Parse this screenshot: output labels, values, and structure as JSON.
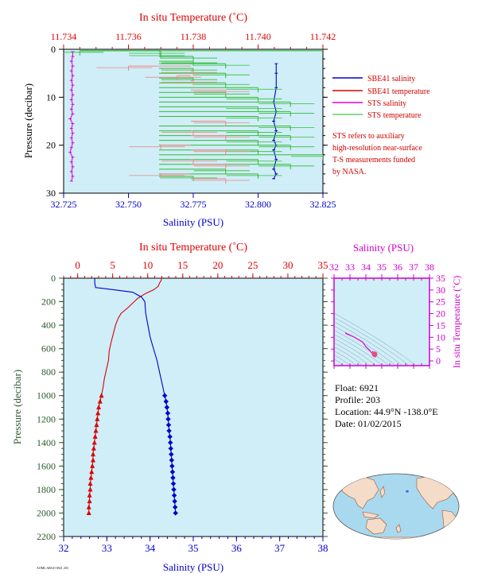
{
  "colors": {
    "plot_bg": "#cfeef8",
    "salinity": "#0000cc",
    "temperature": "#dd0000",
    "sts_salinity": "#dd00dd",
    "sts_temperature": "#33bb33",
    "sts_temperature_shallow": "#f08888",
    "pressure_axis": "#2c5a2c",
    "ts_axis": "#cc00cc"
  },
  "info": {
    "float": "Float:  6921",
    "profile": "Profile:  203",
    "location": "Location:  44.9°N  -138.0°E",
    "date": "Date:  01/02/2015"
  },
  "footer_text": "AOML ARGO 6921 203",
  "chart_data": [
    {
      "id": "top",
      "type": "line",
      "xlabel": "Salinity (PSU)",
      "ylabel": "Pressure (decibar)",
      "top_axis_label": "In situ Temperature (˚C)",
      "xlim": [
        32.725,
        32.825
      ],
      "xticks": [
        "32.725",
        "32.750",
        "32.775",
        "32.800",
        "32.825"
      ],
      "top_xlim": [
        11.734,
        11.742
      ],
      "top_xticks": [
        "11.734",
        "11.736",
        "11.738",
        "11.740",
        "11.742"
      ],
      "ylim": [
        0,
        30
      ],
      "yticks": [
        "0",
        "10",
        "20",
        "30"
      ],
      "legend_position": "right",
      "legend": [
        {
          "name": "SBE41 salinity",
          "color_key": "salinity"
        },
        {
          "name": "SBE41 temperature",
          "color_key": "temperature"
        },
        {
          "name": "STS salinity",
          "color_key": "sts_salinity"
        },
        {
          "name": "STS temperature",
          "color_key": "sts_temperature"
        }
      ],
      "note": [
        "STS refers to auxiliary",
        "high-resolution near-surface",
        "T-S measurements funded",
        "by NASA."
      ],
      "series": [
        {
          "name": "STS salinity",
          "axis": "salinity",
          "color_key": "sts_salinity",
          "points": [
            [
              32.7285,
              0.5
            ],
            [
              32.7285,
              1.5
            ],
            [
              32.728,
              2.5
            ],
            [
              32.7285,
              3.5
            ],
            [
              32.728,
              4.5
            ],
            [
              32.7285,
              5.5
            ],
            [
              32.728,
              6.5
            ],
            [
              32.7285,
              7.5
            ],
            [
              32.728,
              8.5
            ],
            [
              32.7285,
              9.5
            ],
            [
              32.728,
              10.5
            ],
            [
              32.7285,
              11.5
            ],
            [
              32.728,
              12.5
            ],
            [
              32.7285,
              13.5
            ],
            [
              32.7275,
              14.5
            ],
            [
              32.7285,
              15.5
            ],
            [
              32.728,
              16.5
            ],
            [
              32.7285,
              17.5
            ],
            [
              32.728,
              18.5
            ],
            [
              32.7285,
              19.5
            ],
            [
              32.728,
              20.5
            ],
            [
              32.7275,
              21.5
            ],
            [
              32.7285,
              22.5
            ],
            [
              32.728,
              23.5
            ],
            [
              32.7285,
              24.5
            ],
            [
              32.728,
              25.5
            ],
            [
              32.7285,
              26.5
            ],
            [
              32.728,
              27.5
            ]
          ]
        },
        {
          "name": "SBE41 salinity",
          "axis": "salinity",
          "color_key": "salinity",
          "points": [
            [
              32.807,
              3
            ],
            [
              32.807,
              5
            ],
            [
              32.807,
              8
            ],
            [
              32.806,
              11
            ],
            [
              32.807,
              13
            ],
            [
              32.806,
              15
            ],
            [
              32.807,
              17
            ],
            [
              32.806,
              19
            ],
            [
              32.807,
              20
            ],
            [
              32.806,
              21
            ],
            [
              32.807,
              23
            ],
            [
              32.806,
              25
            ],
            [
              32.807,
              26
            ],
            [
              32.806,
              27
            ]
          ]
        },
        {
          "name": "STS temperature",
          "axis": "temperature",
          "color_key": "sts_temperature",
          "points": [
            [
              11.7345,
              0.3
            ],
            [
              11.737,
              0.5
            ],
            [
              11.737,
              1.0
            ],
            [
              11.738,
              1.5
            ],
            [
              11.738,
              2.5
            ],
            [
              11.739,
              3.0
            ],
            [
              11.738,
              4.0
            ],
            [
              11.739,
              5.0
            ],
            [
              11.738,
              6.0
            ],
            [
              11.739,
              7.0
            ],
            [
              11.74,
              8.0
            ],
            [
              11.739,
              9.0
            ],
            [
              11.74,
              10.0
            ],
            [
              11.741,
              11.0
            ],
            [
              11.74,
              12.0
            ],
            [
              11.741,
              13.0
            ],
            [
              11.74,
              14.0
            ],
            [
              11.741,
              16.0
            ],
            [
              11.74,
              17.0
            ],
            [
              11.741,
              18.0
            ],
            [
              11.74,
              19.0
            ],
            [
              11.741,
              20.0
            ],
            [
              11.74,
              21.0
            ],
            [
              11.742,
              22.0
            ],
            [
              11.74,
              23.0
            ],
            [
              11.741,
              24.0
            ],
            [
              11.739,
              25.0
            ],
            [
              11.74,
              26.0
            ],
            [
              11.738,
              26.5
            ]
          ]
        },
        {
          "name": "SBE41 temperature",
          "axis": "temperature",
          "color_key": "sts_temperature_shallow",
          "points": [
            [
              11.736,
              3.5
            ],
            [
              11.738,
              4.5
            ],
            [
              11.7375,
              5.5
            ],
            [
              11.738,
              6.5
            ],
            [
              11.739,
              8.5
            ],
            [
              11.739,
              15.0
            ],
            [
              11.738,
              17.0
            ],
            [
              11.739,
              18.0
            ],
            [
              11.737,
              20.0
            ],
            [
              11.739,
              21.0
            ],
            [
              11.738,
              23.0
            ],
            [
              11.739,
              24.0
            ],
            [
              11.737,
              26.0
            ],
            [
              11.739,
              27.0
            ]
          ]
        }
      ]
    },
    {
      "id": "bottom",
      "type": "line",
      "xlabel": "Salinity (PSU)",
      "ylabel": "Pressure (decibar)",
      "top_axis_label": "In situ Temperature (˚C)",
      "xlim": [
        32,
        38
      ],
      "xticks": [
        "32",
        "33",
        "34",
        "35",
        "36",
        "37",
        "38"
      ],
      "top_xlim": [
        -2,
        35
      ],
      "top_xticks": [
        "0",
        "5",
        "10",
        "15",
        "20",
        "25",
        "30",
        "35"
      ],
      "ylim": [
        0,
        2200
      ],
      "yticks": [
        "0",
        "200",
        "400",
        "600",
        "800",
        "1000",
        "1200",
        "1400",
        "1600",
        "1800",
        "2000",
        "2200"
      ],
      "series": [
        {
          "name": "Temperature",
          "axis": "temperature",
          "color_key": "temperature",
          "points": [
            [
              12.0,
              0
            ],
            [
              11.9,
              20
            ],
            [
              11.7,
              40
            ],
            [
              11.5,
              70
            ],
            [
              10.8,
              100
            ],
            [
              9.7,
              130
            ],
            [
              8.6,
              170
            ],
            [
              7.9,
              210
            ],
            [
              7.2,
              250
            ],
            [
              6.2,
              300
            ],
            [
              5.8,
              340
            ],
            [
              5.4,
              400
            ],
            [
              5.1,
              470
            ],
            [
              4.8,
              540
            ],
            [
              4.5,
              620
            ],
            [
              4.4,
              700
            ],
            [
              4.1,
              780
            ],
            [
              3.8,
              860
            ],
            [
              3.6,
              940
            ],
            [
              3.4,
              1000
            ],
            [
              3.2,
              1050
            ],
            [
              3.0,
              1100
            ],
            [
              2.9,
              1150
            ],
            [
              2.8,
              1200
            ],
            [
              2.7,
              1250
            ],
            [
              2.6,
              1300
            ],
            [
              2.5,
              1350
            ],
            [
              2.4,
              1400
            ],
            [
              2.3,
              1450
            ],
            [
              2.2,
              1500
            ],
            [
              2.2,
              1550
            ],
            [
              2.1,
              1600
            ],
            [
              2.0,
              1650
            ],
            [
              1.9,
              1700
            ],
            [
              1.8,
              1750
            ],
            [
              1.8,
              1800
            ],
            [
              1.7,
              1850
            ],
            [
              1.7,
              1900
            ],
            [
              1.6,
              1950
            ],
            [
              1.6,
              2000
            ]
          ],
          "markers_from": 1000
        },
        {
          "name": "Salinity",
          "axis": "salinity",
          "color_key": "salinity",
          "points": [
            [
              32.72,
              0
            ],
            [
              32.72,
              40
            ],
            [
              32.74,
              80
            ],
            [
              33.2,
              100
            ],
            [
              33.6,
              120
            ],
            [
              33.8,
              160
            ],
            [
              33.88,
              200
            ],
            [
              33.9,
              300
            ],
            [
              33.95,
              400
            ],
            [
              34.0,
              500
            ],
            [
              34.08,
              600
            ],
            [
              34.16,
              700
            ],
            [
              34.22,
              800
            ],
            [
              34.28,
              900
            ],
            [
              34.34,
              1000
            ],
            [
              34.37,
              1050
            ],
            [
              34.39,
              1100
            ],
            [
              34.41,
              1150
            ],
            [
              34.42,
              1200
            ],
            [
              34.43,
              1250
            ],
            [
              34.44,
              1300
            ],
            [
              34.46,
              1350
            ],
            [
              34.47,
              1400
            ],
            [
              34.48,
              1450
            ],
            [
              34.49,
              1500
            ],
            [
              34.5,
              1550
            ],
            [
              34.51,
              1600
            ],
            [
              34.52,
              1650
            ],
            [
              34.53,
              1700
            ],
            [
              34.54,
              1750
            ],
            [
              34.55,
              1800
            ],
            [
              34.56,
              1850
            ],
            [
              34.57,
              1900
            ],
            [
              34.58,
              1950
            ],
            [
              34.59,
              2000
            ]
          ],
          "markers_from": 1000
        }
      ]
    },
    {
      "id": "ts",
      "type": "line",
      "xlabel": "Salinity (PSU)",
      "ylabel": "In situ Temperature (˚C)",
      "xlim": [
        32,
        38
      ],
      "xticks": [
        "32",
        "33",
        "34",
        "35",
        "36",
        "37",
        "38"
      ],
      "ylim": [
        -2,
        35
      ],
      "yticks": [
        "0",
        "5",
        "10",
        "15",
        "20",
        "25",
        "30",
        "35"
      ],
      "series": [
        {
          "name": "T-S",
          "color_key": "sts_salinity",
          "points": [
            [
              32.72,
              12.0
            ],
            [
              32.75,
              11.6
            ],
            [
              33.2,
              10.3
            ],
            [
              33.8,
              8.0
            ],
            [
              33.9,
              7.0
            ],
            [
              34.0,
              6.0
            ],
            [
              34.16,
              5.0
            ],
            [
              34.28,
              4.2
            ],
            [
              34.34,
              3.6
            ],
            [
              34.44,
              3.0
            ],
            [
              34.5,
              2.5
            ],
            [
              34.55,
              2.2
            ],
            [
              34.59,
              1.8
            ],
            [
              34.6,
              3.2
            ],
            [
              34.4,
              4.0
            ]
          ]
        }
      ]
    }
  ]
}
